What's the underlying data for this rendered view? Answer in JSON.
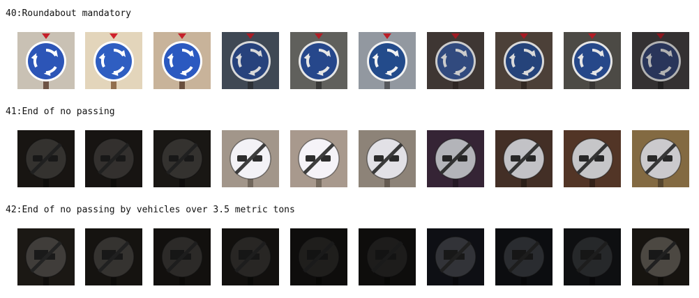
{
  "sections": [
    {
      "title": "40:Roundabout mandatory",
      "kind": "roundabout",
      "images": [
        {
          "bg": "#c9c1b4",
          "sign": "#2c55b7",
          "pole": "#6d5344",
          "brightness": 1.0
        },
        {
          "bg": "#d8cbb2",
          "sign": "#2d5ab8",
          "pole": "#8b6a4a",
          "brightness": 1.05
        },
        {
          "bg": "#c8b39a",
          "sign": "#2b59c0",
          "pole": "#6a4f3d",
          "brightness": 1.0
        },
        {
          "bg": "#4a5563",
          "sign": "#2e4e92",
          "pole": "#34383f",
          "brightness": 0.85
        },
        {
          "bg": "#6b6b66",
          "sign": "#2a4f9a",
          "pole": "#3e3e3c",
          "brightness": 0.9
        },
        {
          "bg": "#9aa0a8",
          "sign": "#254f92",
          "pole": "#5a5d61",
          "brightness": 0.95
        },
        {
          "bg": "#4e4340",
          "sign": "#3d5c9d",
          "pole": "#3a302c",
          "brightness": 0.8
        },
        {
          "bg": "#5a4b42",
          "sign": "#2c4f8f",
          "pole": "#3b2f28",
          "brightness": 0.85
        },
        {
          "bg": "#54524d",
          "sign": "#2a5098",
          "pole": "#3d3b38",
          "brightness": 0.9
        },
        {
          "bg": "#4a4648",
          "sign": "#3a4c80",
          "pole": "#2f2c2d",
          "brightness": 0.7
        }
      ]
    },
    {
      "title": "41:End of no passing",
      "kind": "end-no-passing",
      "images": [
        {
          "bg": "#2c2621",
          "sign": "#5e5a55",
          "pole": "#1a1714",
          "brightness": 0.55
        },
        {
          "bg": "#2a2520",
          "sign": "#5c5853",
          "pole": "#1a1714",
          "brightness": 0.55
        },
        {
          "bg": "#2e2924",
          "sign": "#5f5b56",
          "pole": "#1b1815",
          "brightness": 0.55
        },
        {
          "bg": "#9a8f83",
          "sign": "#e7e6ea",
          "pole": "#6c6258",
          "brightness": 1.05
        },
        {
          "bg": "#a09286",
          "sign": "#e9e7ec",
          "pole": "#6f655a",
          "brightness": 1.05
        },
        {
          "bg": "#8d8378",
          "sign": "#e2e1e6",
          "pole": "#655b51",
          "brightness": 1.0
        },
        {
          "bg": "#3e2a3e",
          "sign": "#d3d4da",
          "pole": "#2a1c2a",
          "brightness": 0.85
        },
        {
          "bg": "#4a342a",
          "sign": "#d8d8dc",
          "pole": "#30221b",
          "brightness": 0.9
        },
        {
          "bg": "#5b3b2a",
          "sign": "#dcdcde",
          "pole": "#3a261b",
          "brightness": 0.9
        },
        {
          "bg": "#8a7046",
          "sign": "#d6d5d8",
          "pole": "#5a4a30",
          "brightness": 0.95
        }
      ]
    },
    {
      "title": "42:End of no passing by vehicles over 3.5 metric tons",
      "kind": "end-no-passing-trucks",
      "images": [
        {
          "bg": "#2d2822",
          "sign": "#6a6660",
          "pole": "#1b1814",
          "brightness": 0.6
        },
        {
          "bg": "#27221d",
          "sign": "#605c57",
          "pole": "#181512",
          "brightness": 0.55
        },
        {
          "bg": "#25211c",
          "sign": "#57534f",
          "pole": "#171410",
          "brightness": 0.5
        },
        {
          "bg": "#23201c",
          "sign": "#4f4c48",
          "pole": "#15130f",
          "brightness": 0.5
        },
        {
          "bg": "#1f1d1a",
          "sign": "#44423e",
          "pole": "#12110e",
          "brightness": 0.45
        },
        {
          "bg": "#1e1c1a",
          "sign": "#403e3b",
          "pole": "#12110e",
          "brightness": 0.45
        },
        {
          "bg": "#1a1c24",
          "sign": "#5a5d66",
          "pole": "#101116",
          "brightness": 0.55
        },
        {
          "bg": "#181a20",
          "sign": "#55585f",
          "pole": "#0f1014",
          "brightness": 0.5
        },
        {
          "bg": "#1c1d22",
          "sign": "#4d4f55",
          "pole": "#101115",
          "brightness": 0.5
        },
        {
          "bg": "#2a241e",
          "sign": "#8a8278",
          "pole": "#19150f",
          "brightness": 0.55
        }
      ]
    }
  ]
}
